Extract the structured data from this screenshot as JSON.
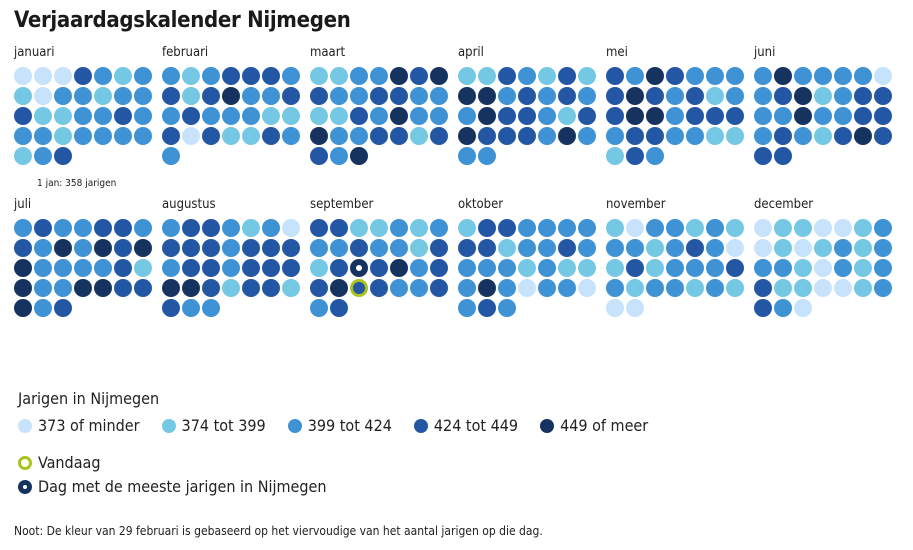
{
  "title": "Verjaardagskalender Nijmegen",
  "tooltip": "1 jan: 358 jarigen",
  "legend": {
    "title": "Jarigen in Nijmegen",
    "items": [
      {
        "label": "373 of minder",
        "color": "#c6e3fb"
      },
      {
        "label": "374 tot 399",
        "color": "#74c8e3"
      },
      {
        "label": "399 tot 424",
        "color": "#3f93d4"
      },
      {
        "label": "424 tot 449",
        "color": "#2457a3"
      },
      {
        "label": "449 of meer",
        "color": "#16325f"
      }
    ],
    "today_label": "Vandaag",
    "max_label": "Dag met de meeste jarigen in Nijmegen",
    "today_color": "#a8c41a"
  },
  "note": "Noot: De kleur van 29 februari is gebaseerd op het viervoudige van het aantal jarigen op die dag.",
  "chart_data": {
    "type": "heatmap",
    "title": "Verjaardagskalender Nijmegen",
    "value_meaning": "category index into legend.items per day of month",
    "today": {
      "month": "september",
      "day": 24
    },
    "max_day": {
      "month": "september",
      "day": 17
    },
    "annotation": {
      "month": "januari",
      "day": 1,
      "value": 358
    },
    "months": [
      {
        "name": "januari",
        "levels": [
          0,
          0,
          0,
          3,
          2,
          1,
          2,
          1,
          0,
          2,
          2,
          1,
          2,
          2,
          3,
          1,
          1,
          2,
          2,
          3,
          2,
          2,
          2,
          1,
          2,
          2,
          2,
          2,
          1,
          2,
          3
        ]
      },
      {
        "name": "februari",
        "levels": [
          2,
          1,
          2,
          3,
          3,
          3,
          2,
          3,
          1,
          3,
          4,
          2,
          2,
          3,
          2,
          3,
          2,
          2,
          2,
          1,
          1,
          3,
          0,
          3,
          1,
          1,
          3,
          2,
          2
        ]
      },
      {
        "name": "maart",
        "levels": [
          1,
          1,
          2,
          2,
          4,
          3,
          4,
          3,
          2,
          2,
          3,
          3,
          2,
          2,
          1,
          1,
          3,
          2,
          4,
          2,
          2,
          4,
          2,
          2,
          3,
          3,
          1,
          3,
          3,
          2,
          4
        ]
      },
      {
        "name": "april",
        "levels": [
          1,
          1,
          3,
          2,
          1,
          3,
          1,
          4,
          4,
          2,
          3,
          2,
          3,
          2,
          2,
          4,
          3,
          3,
          2,
          1,
          3,
          4,
          3,
          3,
          3,
          2,
          4,
          2,
          2,
          2
        ]
      },
      {
        "name": "mei",
        "levels": [
          3,
          2,
          4,
          3,
          2,
          2,
          2,
          3,
          4,
          3,
          2,
          3,
          1,
          2,
          3,
          4,
          4,
          2,
          3,
          3,
          3,
          2,
          3,
          3,
          2,
          2,
          1,
          1,
          1,
          3,
          2
        ]
      },
      {
        "name": "juni",
        "levels": [
          2,
          4,
          2,
          2,
          2,
          2,
          0,
          2,
          3,
          4,
          1,
          2,
          3,
          3,
          2,
          2,
          4,
          2,
          2,
          3,
          3,
          2,
          3,
          2,
          1,
          3,
          4,
          3,
          3,
          3
        ]
      },
      {
        "name": "juli",
        "levels": [
          2,
          3,
          2,
          2,
          3,
          3,
          2,
          3,
          2,
          4,
          2,
          4,
          3,
          4,
          4,
          2,
          2,
          2,
          2,
          3,
          1,
          4,
          2,
          2,
          4,
          4,
          3,
          3,
          4,
          2,
          3
        ]
      },
      {
        "name": "augustus",
        "levels": [
          2,
          3,
          3,
          2,
          1,
          2,
          0,
          3,
          3,
          3,
          2,
          3,
          3,
          3,
          2,
          3,
          3,
          2,
          3,
          3,
          3,
          4,
          4,
          3,
          1,
          3,
          3,
          1,
          3,
          2,
          2
        ]
      },
      {
        "name": "september",
        "levels": [
          3,
          3,
          1,
          1,
          2,
          1,
          2,
          2,
          2,
          3,
          2,
          2,
          1,
          3,
          1,
          3,
          4,
          3,
          4,
          2,
          3,
          3,
          4,
          3,
          3,
          2,
          2,
          3,
          2,
          3
        ]
      },
      {
        "name": "oktober",
        "levels": [
          1,
          3,
          3,
          2,
          2,
          2,
          2,
          3,
          3,
          1,
          2,
          2,
          3,
          2,
          2,
          2,
          2,
          1,
          2,
          1,
          1,
          2,
          4,
          2,
          0,
          2,
          2,
          0,
          2,
          3,
          2
        ]
      },
      {
        "name": "november",
        "levels": [
          1,
          0,
          2,
          2,
          1,
          2,
          1,
          2,
          2,
          1,
          2,
          3,
          2,
          0,
          1,
          3,
          1,
          2,
          2,
          2,
          3,
          2,
          1,
          2,
          2,
          1,
          2,
          1,
          0,
          0
        ]
      },
      {
        "name": "december",
        "levels": [
          0,
          1,
          1,
          0,
          0,
          1,
          2,
          0,
          1,
          0,
          1,
          2,
          1,
          2,
          2,
          2,
          1,
          0,
          2,
          1,
          2,
          3,
          1,
          1,
          0,
          0,
          1,
          2,
          3,
          2,
          0
        ]
      }
    ]
  }
}
